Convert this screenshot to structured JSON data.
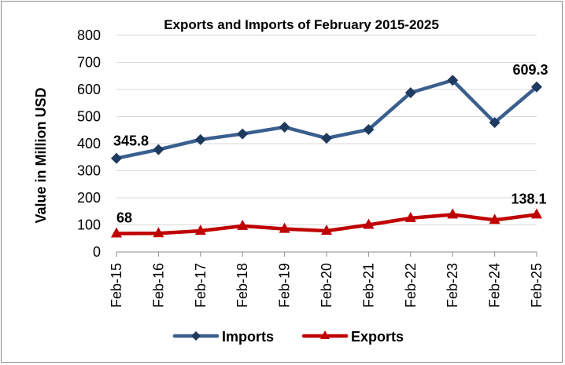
{
  "chart_data": {
    "type": "line",
    "title": "Exports and Imports of February 2015-2025",
    "xlabel": "",
    "ylabel": "Value in Million USD",
    "categories": [
      "Feb-15",
      "Feb-16",
      "Feb-17",
      "Feb-18",
      "Feb-19",
      "Feb-20",
      "Feb-21",
      "Feb-22",
      "Feb-23",
      "Feb-24",
      "Feb-25"
    ],
    "ylim": [
      0,
      800
    ],
    "yticks": [
      0,
      100,
      200,
      300,
      400,
      500,
      600,
      700,
      800
    ],
    "grid": true,
    "legend": "bottom",
    "series": [
      {
        "name": "Imports",
        "color": "#3a5f8f",
        "marker": "diamond",
        "values": [
          345.8,
          378,
          415,
          436,
          461,
          420,
          452,
          588,
          634,
          478,
          609.3
        ],
        "labels": [
          {
            "index": 0,
            "text": "345.8"
          },
          {
            "index": 10,
            "text": "609.3"
          }
        ]
      },
      {
        "name": "Exports",
        "color": "#c00000",
        "marker": "triangle",
        "values": [
          68,
          69,
          78,
          96,
          85,
          78,
          100,
          125,
          138,
          118,
          138.1
        ],
        "labels": [
          {
            "index": 0,
            "text": "68"
          },
          {
            "index": 10,
            "text": "138.1"
          }
        ]
      }
    ]
  }
}
